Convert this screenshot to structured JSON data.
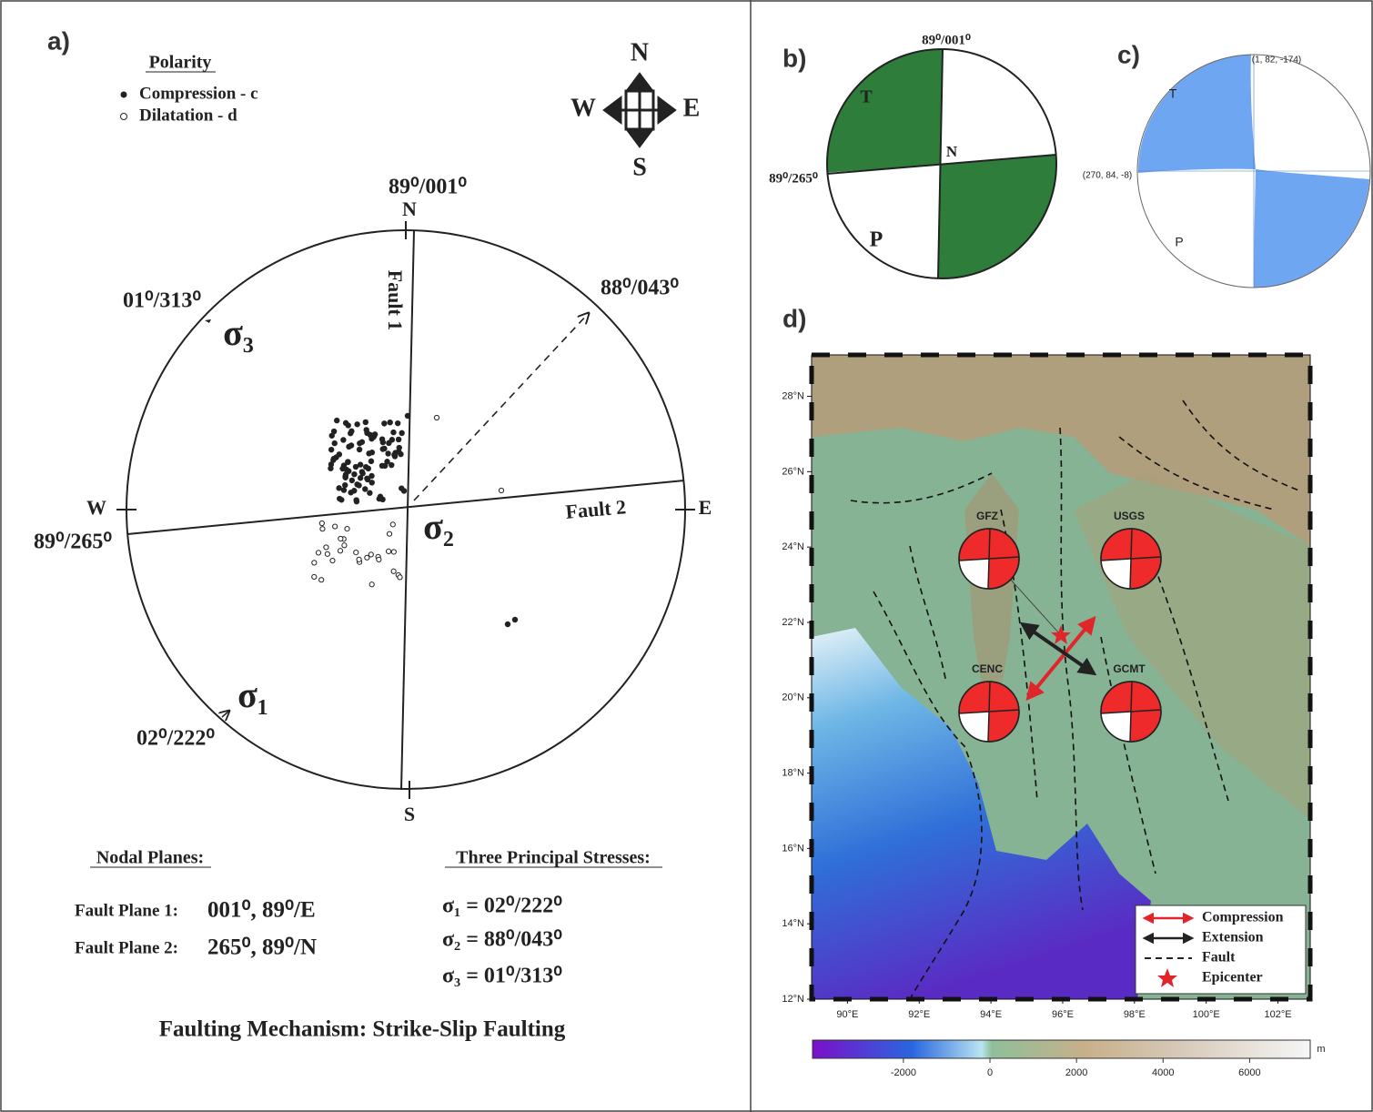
{
  "panel_a": {
    "label": "a)",
    "polarity_title": "Polarity",
    "polarity_items": [
      "Compression - c",
      "Dilatation - d"
    ],
    "compass": {
      "n": "N",
      "e": "E",
      "s": "S",
      "w": "W"
    },
    "top_plane": "89⁰/001⁰",
    "directions": {
      "n": "N",
      "s": "S",
      "w": "W",
      "e": "E"
    },
    "fault1": "Fault 1",
    "fault2": "Fault 2",
    "sigma2_orient": "88⁰/043⁰",
    "sigma3_orient": "01⁰/313⁰",
    "sigma1_orient": "02⁰/222⁰",
    "left_plane": "89⁰/265⁰",
    "sigma_labels": [
      "σ₁",
      "σ₂",
      "σ₃"
    ],
    "nodal_title": "Nodal Planes:",
    "nodal_rows": [
      [
        "Fault Plane 1:",
        "001⁰, 89⁰/E"
      ],
      [
        "Fault Plane 2:",
        "265⁰, 89⁰/N"
      ]
    ],
    "stress_title": "Three Principal Stresses:",
    "stress_rows": [
      "σ₁ = 02⁰/222⁰",
      "σ₂ = 88⁰/043⁰",
      "σ₃ = 01⁰/313⁰"
    ],
    "mechanism": "Faulting Mechanism: Strike-Slip Faulting"
  },
  "panel_b": {
    "label": "b)",
    "top": "89⁰/001⁰",
    "left": "89⁰/265⁰",
    "t": "T",
    "p": "P",
    "n": "N"
  },
  "panel_c": {
    "label": "c)",
    "top": "(1, 82, -174)",
    "left": "(270, 84, -8)",
    "t": "T",
    "p": "P"
  },
  "panel_d": {
    "label": "d)",
    "lonlim": [
      89,
      102.9
    ],
    "latlim": [
      12,
      29.1
    ],
    "lonticks": [
      {
        "value": 90,
        "label": "90°E"
      },
      {
        "value": 92,
        "label": "92°E"
      },
      {
        "value": 94,
        "label": "94°E"
      },
      {
        "value": 96,
        "label": "96°E"
      },
      {
        "value": 98,
        "label": "98°E"
      },
      {
        "value": 100,
        "label": "100°E"
      },
      {
        "value": 102,
        "label": "102°E"
      }
    ],
    "latticks": [
      {
        "value": 12,
        "label": "12°N"
      },
      {
        "value": 14,
        "label": "14°N"
      },
      {
        "value": 16,
        "label": "16°N"
      },
      {
        "value": 18,
        "label": "18°N"
      },
      {
        "value": 20,
        "label": "20°N"
      },
      {
        "value": 22,
        "label": "22°N"
      },
      {
        "value": 24,
        "label": "24°N"
      },
      {
        "value": 26,
        "label": "26°N"
      },
      {
        "value": 28,
        "label": "28°N"
      }
    ],
    "agencies": [
      "GFZ",
      "USGS",
      "CENC",
      "GCMT"
    ],
    "legend": [
      "Compression",
      "Extension",
      "Fault",
      "Epicenter"
    ],
    "colorbar": {
      "lim": [
        -4100,
        7400
      ],
      "ticks": [
        -2000,
        0,
        2000,
        4000,
        6000
      ],
      "unit": "m"
    }
  }
}
